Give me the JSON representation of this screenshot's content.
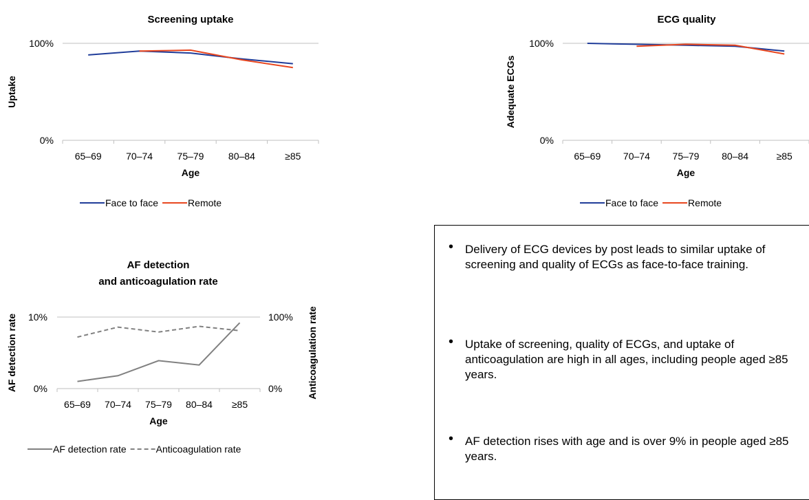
{
  "chart_data": [
    {
      "type": "line",
      "title": "Screening uptake",
      "xlabel": "Age",
      "ylabel": "Uptake",
      "categories": [
        "65–69",
        "70–74",
        "75–79",
        "80–84",
        "≥85"
      ],
      "ylim": [
        0,
        100
      ],
      "yticks": [
        "0%",
        "100%"
      ],
      "grid": false,
      "legend": "bottom",
      "series": [
        {
          "name": "Face to face",
          "color": "#1f3c99",
          "values": [
            88,
            92,
            90,
            84,
            79
          ]
        },
        {
          "name": "Remote",
          "color": "#e8461e",
          "values": [
            null,
            92,
            93,
            83,
            75
          ]
        }
      ]
    },
    {
      "type": "line",
      "title": "ECG quality",
      "xlabel": "Age",
      "ylabel": "Adequate ECGs",
      "categories": [
        "65–69",
        "70–74",
        "75–79",
        "80–84",
        "≥85"
      ],
      "ylim": [
        0,
        100
      ],
      "yticks": [
        "0%",
        "100%"
      ],
      "grid": false,
      "legend": "bottom",
      "series": [
        {
          "name": "Face to face",
          "color": "#1f3c99",
          "values": [
            100,
            99,
            98,
            97,
            92
          ]
        },
        {
          "name": "Remote",
          "color": "#e8461e",
          "values": [
            null,
            97,
            99,
            98,
            89
          ]
        }
      ]
    },
    {
      "type": "line",
      "title": "AF detection and anticoagulation rate",
      "xlabel": "Age",
      "ylabel": "AF detection rate",
      "ylabel_right": "Anticoagulation rate",
      "categories": [
        "65–69",
        "70–74",
        "75–79",
        "80–84",
        "≥85"
      ],
      "ylim": [
        0,
        10
      ],
      "ylim_right": [
        0,
        100
      ],
      "yticks": [
        "0%",
        "10%"
      ],
      "yticks_right": [
        "0%",
        "100%"
      ],
      "grid": false,
      "legend": "bottom",
      "series": [
        {
          "name": "AF detection rate",
          "color": "#808080",
          "axis": "left",
          "dash": false,
          "values": [
            1.0,
            1.8,
            3.9,
            3.3,
            9.2
          ]
        },
        {
          "name": "Anticoagulation rate",
          "color": "#808080",
          "axis": "right",
          "dash": true,
          "values": [
            72,
            86,
            79,
            87,
            81
          ]
        }
      ]
    }
  ],
  "notes": [
    "Delivery of ECG devices by post leads to similar uptake of screening and quality of ECGs as face-to-face training.",
    "Uptake of screening, quality of ECGs, and uptake of anticoagulation are high in all ages, including people aged ≥85 years.",
    "AF detection rises with age and is over 9% in people aged ≥85 years."
  ]
}
